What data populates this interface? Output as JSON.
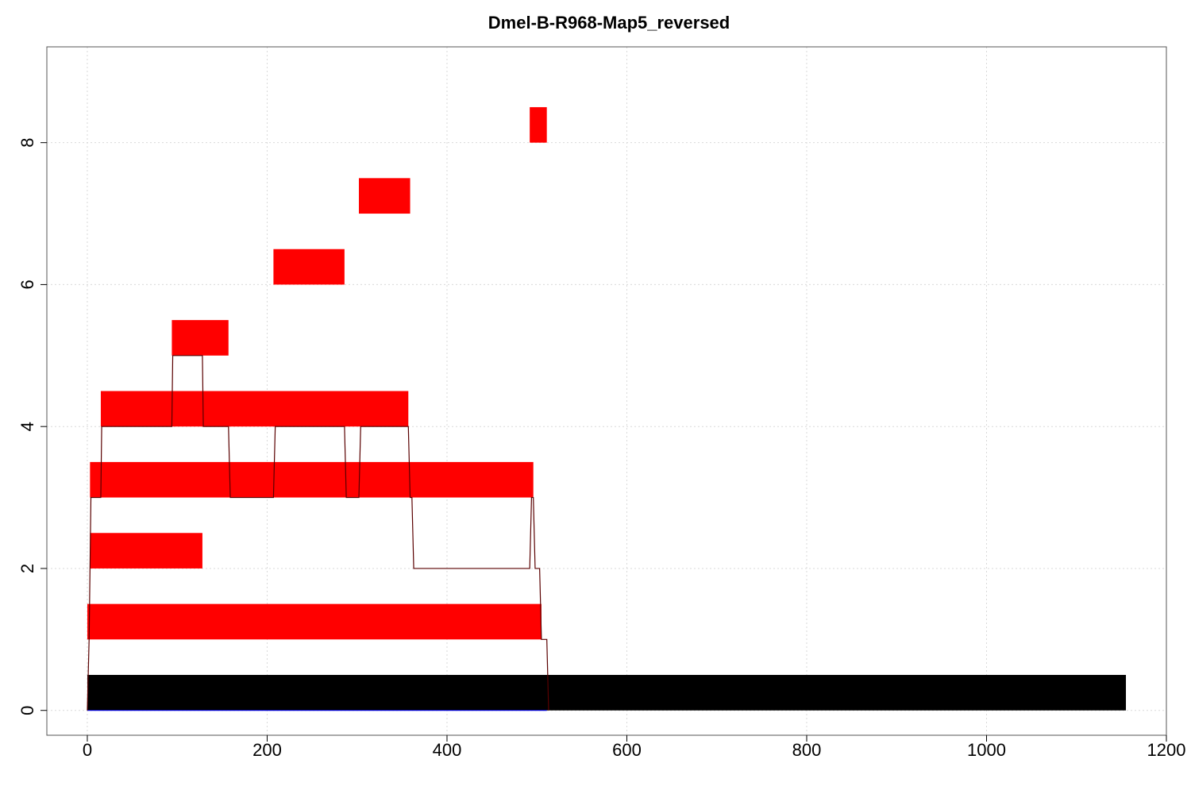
{
  "chart_data": {
    "type": "bar",
    "title": "Dmel-B-R968-Map5_reversed",
    "xlabel": "",
    "ylabel": "",
    "xlim": [
      -45,
      1200
    ],
    "ylim": [
      -0.35,
      9.35
    ],
    "x_ticks": [
      0,
      200,
      400,
      600,
      800,
      1000,
      1200
    ],
    "y_ticks": [
      0,
      2,
      4,
      6,
      8
    ],
    "grid": true,
    "reference_bar": {
      "level": 0,
      "start": 0,
      "end": 1155,
      "color": "#000000"
    },
    "segments": [
      {
        "level": 1,
        "start": 0,
        "end": 505
      },
      {
        "level": 2,
        "start": 3,
        "end": 128
      },
      {
        "level": 3,
        "start": 3,
        "end": 496
      },
      {
        "level": 4,
        "start": 15,
        "end": 357
      },
      {
        "level": 5,
        "start": 94,
        "end": 157
      },
      {
        "level": 6,
        "start": 207,
        "end": 286
      },
      {
        "level": 7,
        "start": 302,
        "end": 359
      },
      {
        "level": 8,
        "start": 492,
        "end": 511
      }
    ],
    "segment_color": "#ff0000",
    "coverage_line": {
      "color": "#5a0000",
      "x": [
        0,
        2,
        3,
        4,
        15,
        16,
        94,
        95,
        128,
        129,
        157,
        159,
        207,
        209,
        286,
        288,
        302,
        304,
        357,
        359,
        361,
        363,
        492,
        494,
        496,
        498,
        503,
        505,
        511,
        513
      ],
      "y": [
        0,
        1,
        2,
        3,
        3,
        4,
        4,
        5,
        5,
        4,
        4,
        3,
        3,
        4,
        4,
        3,
        3,
        4,
        4,
        3,
        3,
        2,
        2,
        3,
        3,
        2,
        2,
        1,
        1,
        0
      ]
    },
    "baseline_color": "#0000ff"
  }
}
